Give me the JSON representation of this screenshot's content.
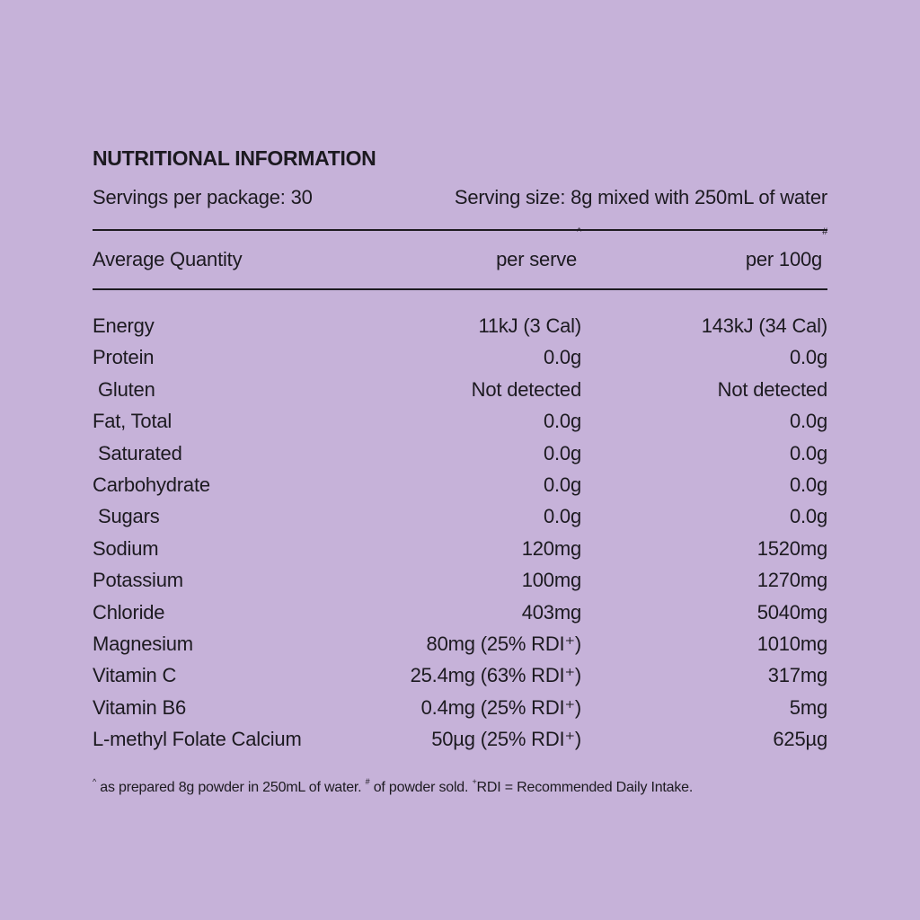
{
  "title": "NUTRITIONAL INFORMATION",
  "servings_per_package": "Servings per package: 30",
  "serving_size": "Serving size: 8g mixed with 250mL of water",
  "header": {
    "col1": "Average Quantity",
    "col2": "per serve",
    "col2_mark": "^",
    "col3": "per 100g",
    "col3_mark": "#"
  },
  "rows": [
    {
      "name": "Energy",
      "per_serve": "11kJ (3 Cal)",
      "per_100g": "143kJ (34 Cal)"
    },
    {
      "name": "Protein",
      "per_serve": "0.0g",
      "per_100g": "0.0g"
    },
    {
      "name": "Gluten",
      "per_serve": "Not detected",
      "per_100g": "Not detected"
    },
    {
      "name": "Fat, Total",
      "per_serve": "0.0g",
      "per_100g": "0.0g"
    },
    {
      "name": "Saturated",
      "per_serve": "0.0g",
      "per_100g": "0.0g"
    },
    {
      "name": "Carbohydrate",
      "per_serve": "0.0g",
      "per_100g": "0.0g"
    },
    {
      "name": "Sugars",
      "per_serve": "0.0g",
      "per_100g": "0.0g"
    },
    {
      "name": "Sodium",
      "per_serve": "120mg",
      "per_100g": "1520mg"
    },
    {
      "name": "Potassium",
      "per_serve": "100mg",
      "per_100g": "1270mg"
    },
    {
      "name": "Chloride",
      "per_serve": "403mg",
      "per_100g": "5040mg"
    },
    {
      "name": "Magnesium",
      "per_serve": "80mg (25% RDI⁺)",
      "per_100g": "1010mg"
    },
    {
      "name": "Vitamin C",
      "per_serve": "25.4mg (63% RDI⁺)",
      "per_100g": "317mg"
    },
    {
      "name": "Vitamin B6",
      "per_serve": "0.4mg (25% RDI⁺)",
      "per_100g": "5mg"
    },
    {
      "name": "L-methyl Folate Calcium",
      "per_serve": "50µg (25% RDI⁺)",
      "per_100g": "625µg"
    }
  ],
  "footnote": {
    "mark1": "^",
    "text1": " as prepared 8g powder in 250mL of water. ",
    "mark2": "#",
    "text2": " of powder sold. ",
    "mark3": "+",
    "text3": "RDI = Recommended Daily Intake."
  },
  "colors": {
    "background": "#c6b2d9",
    "text": "#1c1a20"
  }
}
